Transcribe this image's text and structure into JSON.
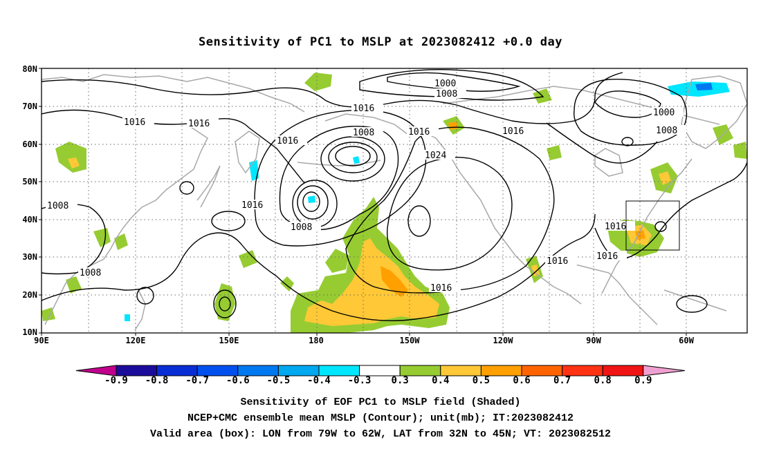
{
  "map": {
    "title": "Sensitivity of PC1 to MSLP at 2023082412 +0.0 day",
    "lat_labels": [
      "80N",
      "70N",
      "60N",
      "50N",
      "40N",
      "30N",
      "20N",
      "10N"
    ],
    "lon_labels": [
      "90E",
      "120E",
      "150E",
      "180",
      "150W",
      "120W",
      "90W",
      "60W"
    ],
    "contour_labels": [
      "1000",
      "1008",
      "1016",
      "1016",
      "1016",
      "1008",
      "1016",
      "1016",
      "1000",
      "1008",
      "1024",
      "1016",
      "1008",
      "1016",
      "1008",
      "1008",
      "1016",
      "1016",
      "1016"
    ],
    "valid_box": {
      "lon_from": "79W",
      "lon_to": "62W",
      "lat_from": "32N",
      "lat_to": "45N"
    }
  },
  "colorbar": {
    "labels": [
      "-0.9",
      "-0.8",
      "-0.7",
      "-0.6",
      "-0.5",
      "-0.4",
      "-0.3",
      "0.3",
      "0.4",
      "0.5",
      "0.6",
      "0.7",
      "0.8",
      "0.9"
    ],
    "colors": {
      "below_min": "#c0008c",
      "bins": [
        "#1c0c9c",
        "#0a2ed6",
        "#0050f0",
        "#0078f0",
        "#00a8f0",
        "#00e6ff",
        "#ffffff",
        "#96cc32",
        "#ffc837",
        "#ffa000",
        "#ff6400",
        "#ff3214",
        "#f01414"
      ],
      "above_max": "#f0a0d0"
    }
  },
  "captions": {
    "line1": "Sensitivity of EOF PC1 to MSLP field (Shaded)",
    "line2": "NCEP+CMC ensemble mean MSLP (Contour); unit(mb); IT:2023082412",
    "line3": "Valid area (box): LON from 79W to 62W, LAT from 32N to 45N; VT: 2023082512"
  }
}
